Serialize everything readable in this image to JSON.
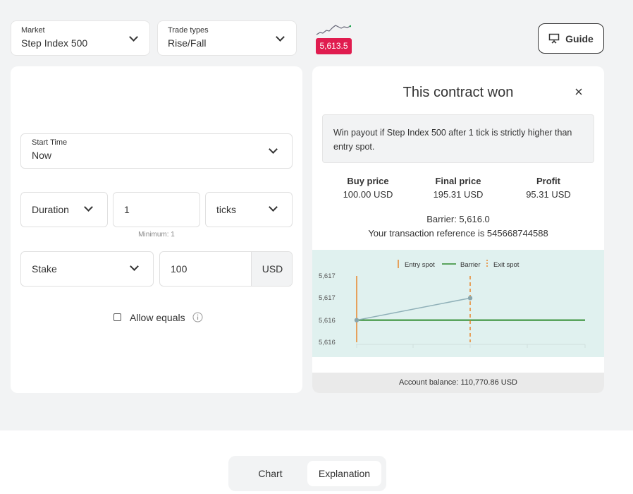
{
  "market": {
    "label": "Market",
    "value": "Step Index 500"
  },
  "trade_types": {
    "label": "Trade types",
    "value": "Rise/Fall"
  },
  "current_price": "5,613.5",
  "guide_label": "Guide",
  "form": {
    "start_time": {
      "label": "Start Time",
      "value": "Now"
    },
    "duration": {
      "type": "Duration",
      "value": "1",
      "unit": "ticks",
      "hint": "Minimum: 1"
    },
    "stake": {
      "type": "Stake",
      "value": "100",
      "currency": "USD"
    },
    "allow_equals": {
      "label": "Allow equals",
      "checked": false
    }
  },
  "contract": {
    "title": "This contract won",
    "description": "Win payout if Step Index 500 after 1 tick is strictly higher than entry spot.",
    "buy_price": {
      "label": "Buy price",
      "value": "100.00 USD"
    },
    "final_price": {
      "label": "Final price",
      "value": "195.31 USD"
    },
    "profit": {
      "label": "Profit",
      "value": "95.31 USD"
    },
    "barrier": "Barrier: 5,616.0",
    "reference": "Your transaction reference is 545668744588",
    "account_balance": "Account balance: 110,770.86 USD"
  },
  "chart_data": {
    "type": "line",
    "legend": [
      "Entry spot",
      "Barrier",
      "Exit spot"
    ],
    "y_ticks": [
      "5,617",
      "5,617",
      "5,616",
      "5,616"
    ],
    "series": [
      {
        "name": "Price",
        "points": [
          [
            1,
            5616.0
          ],
          [
            2,
            5616.5
          ]
        ]
      }
    ],
    "barrier": 5616.0,
    "entry_tick": 1,
    "exit_tick": 2,
    "colors": {
      "price": "#8fb0b8",
      "barrier": "#2e8b2e",
      "entry": "#e8862a",
      "exit": "#e8862a"
    }
  },
  "tabs": [
    {
      "label": "Chart",
      "active": false
    },
    {
      "label": "Explanation",
      "active": true
    }
  ]
}
